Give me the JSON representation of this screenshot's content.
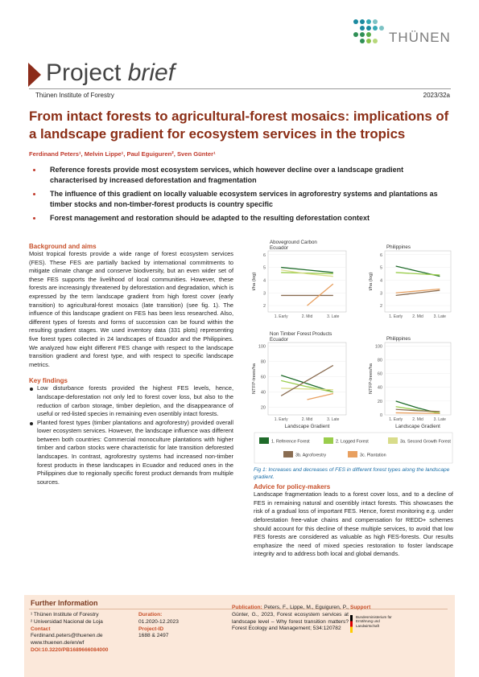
{
  "header": {
    "logo": "THÜNEN",
    "brand": "Project",
    "brand_em": "brief",
    "institute": "Thünen Institute of Forestry",
    "number": "2023/32a"
  },
  "title": "From intact forests to agricultural-forest mosaics: implications of a landscape gradient for ecosystem services in the tropics",
  "authors": "Ferdinand Peters¹, Melvin Lippe¹, Paul Eguiguren², Sven Günter¹",
  "highlights": [
    "Reference forests provide most ecosystem services, which however decline over a landscape gradient characterised by increased deforestation and fragmentation",
    "The influence of this gradient on locally valuable ecosystem services in agroforestry systems and plantations as timber stocks and non-timber-forest products is country specific",
    "Forest management and restoration should be adapted to the resulting deforestation context"
  ],
  "background": {
    "heading": "Background and aims",
    "text": "Moist tropical forests provide a wide range of forest ecosystem services (FES). These FES are partially backed by international commitments to mitigate climate change and conserve biodiversity, but an even wider set of these FES supports the livelihood of local communities. However, these forests are increasingly threatened by deforestation and degradation, which is expressed by the term landscape gradient from high forest cover (early transition) to agricultural-forest mosaics (late transition) (see fig. 1). The influence of this landscape gradient on FES has been less researched. Also, different types of forests and forms of succession can be found within the resulting gradient stages. We used inventory data (331 plots) representing five forest types collected in 24 landscapes of Ecuador and the Philippines. We analyzed how eight different FES change with respect to the landscape transition gradient and forest type, and with respect to specific landscape metrics."
  },
  "findings": {
    "heading": "Key findings",
    "items": [
      "Low disturbance forests provided the highest FES levels, hence, landscape-deforestation not only led to forest cover loss, but also to the reduction of carbon storage, timber depletion, and the disappearance of useful or red-listed species in remaining even osentibly intact forests.",
      "Planted forest types (timber plantations and agroforestry) provided overall lower ecosystem services. However, the landscape influence was different between both countries: Commercial monoculture plantations with higher timber and carbon stocks were characteristic for late transition deforested landscapes. In contrast, agroforestry systems had increased non-timber forest products in these landscapes in Ecuador and reduced ones in the Philippines due to regionally specific forest product demands from multiple sources."
    ]
  },
  "figure": {
    "categories": [
      "1. Early",
      "2. Mid",
      "3. Late"
    ],
    "xlabel": "Landscape Gradient",
    "legend": [
      {
        "name": "1. Reference Forest",
        "color": "#1f6b2a"
      },
      {
        "name": "2. Logged Forest",
        "color": "#9acd4c"
      },
      {
        "name": "3a. Second Growth Forest",
        "color": "#d8dc8a"
      },
      {
        "name": "3b. Agroforestry",
        "color": "#8a6d52"
      },
      {
        "name": "3c. Plantation",
        "color": "#e8a060"
      }
    ],
    "panels": [
      {
        "title": "Aboveground Carbon",
        "subtitle": "Ecuador",
        "ylabel": "t/ha (log)",
        "ylim": [
          1.5,
          6.3
        ],
        "yticks": [
          2,
          3,
          4,
          5,
          6
        ],
        "series": [
          [
            5.0,
            4.8,
            4.6
          ],
          [
            4.6,
            4.55,
            4.5
          ],
          [
            4.8,
            4.5,
            4.3
          ],
          [
            2.8,
            2.8,
            2.8
          ],
          [
            null,
            2.0,
            3.7
          ]
        ]
      },
      {
        "title": "Philippines",
        "ylabel": "t/ha (log)",
        "ylim": [
          1.5,
          6.3
        ],
        "yticks": [
          2,
          3,
          4,
          5,
          6
        ],
        "series": [
          [
            5.1,
            4.7,
            4.3
          ],
          [
            4.6,
            4.5,
            4.4
          ],
          [
            null,
            null,
            null
          ],
          [
            2.8,
            3.0,
            3.2
          ],
          [
            3.0,
            3.15,
            3.3
          ]
        ]
      },
      {
        "title": "Non Timber Forest Products",
        "subtitle": "Ecuador",
        "ylabel": "NTFP-trees/ha",
        "ylim": [
          10,
          105
        ],
        "yticks": [
          20,
          40,
          60,
          80,
          100
        ],
        "series": [
          [
            62,
            51,
            40
          ],
          [
            55,
            47,
            40
          ],
          [
            45,
            44,
            43
          ],
          [
            35,
            55,
            75
          ],
          [
            null,
            30,
            38
          ]
        ]
      },
      {
        "title": "Philippines",
        "ylabel": "NTFP-trees/ha",
        "ylim": [
          0,
          105
        ],
        "yticks": [
          0,
          20,
          40,
          60,
          80,
          100
        ],
        "series": [
          [
            20,
            10,
            2
          ],
          [
            12,
            7,
            3
          ],
          [
            null,
            null,
            null
          ],
          [
            8,
            6,
            5
          ],
          [
            3,
            2.5,
            2
          ]
        ]
      }
    ],
    "caption": "Fig 1: Increases and decreases of FES in different forest types along the landscape gradient."
  },
  "advice": {
    "heading": "Advice for policy-makers",
    "text": "Landscape fragmentation leads to a forest cover loss, and to a decline of FES in remaining natural and osentibly intact forests. This showcases the risk of a gradual loss of important FES. Hence, forest monitoring e.g. under deforestation free-value chains and compensation for REDD+ schemes should account for this decline of these multiple services, to avoid that low FES forests are considered as valuable as high FES-forests. Our results emphasize the need of mixed species restoration to foster landscape integrity and to address both local and global demands."
  },
  "footer": {
    "heading": "Further Information",
    "affiliations": [
      "¹ Thünen Institute of Forestry",
      "² Universidad Nacional de Loja"
    ],
    "contact_label": "Contact",
    "email": "Ferdinand.peters@thuenen.de",
    "web": "www.thuenen.de/en/wf",
    "doi": "DOI:10.3220/PB1689666084000",
    "duration_label": "Duration:",
    "duration": "01.2020-12.2023",
    "project_label": "Project-ID",
    "project": "1688 & 2497",
    "publication_label": "Publication:",
    "publication": "Peters, F., Lippe, M., Eguiguren, P., Günter, G., 2023, Forest ecosystem services at landscape level – Why forest transition matters? Forest Ecology and Management; 534:120782",
    "support_label": "Support",
    "sponsor": "Bundesministerium für Ernährung und Landwirtschaft"
  }
}
